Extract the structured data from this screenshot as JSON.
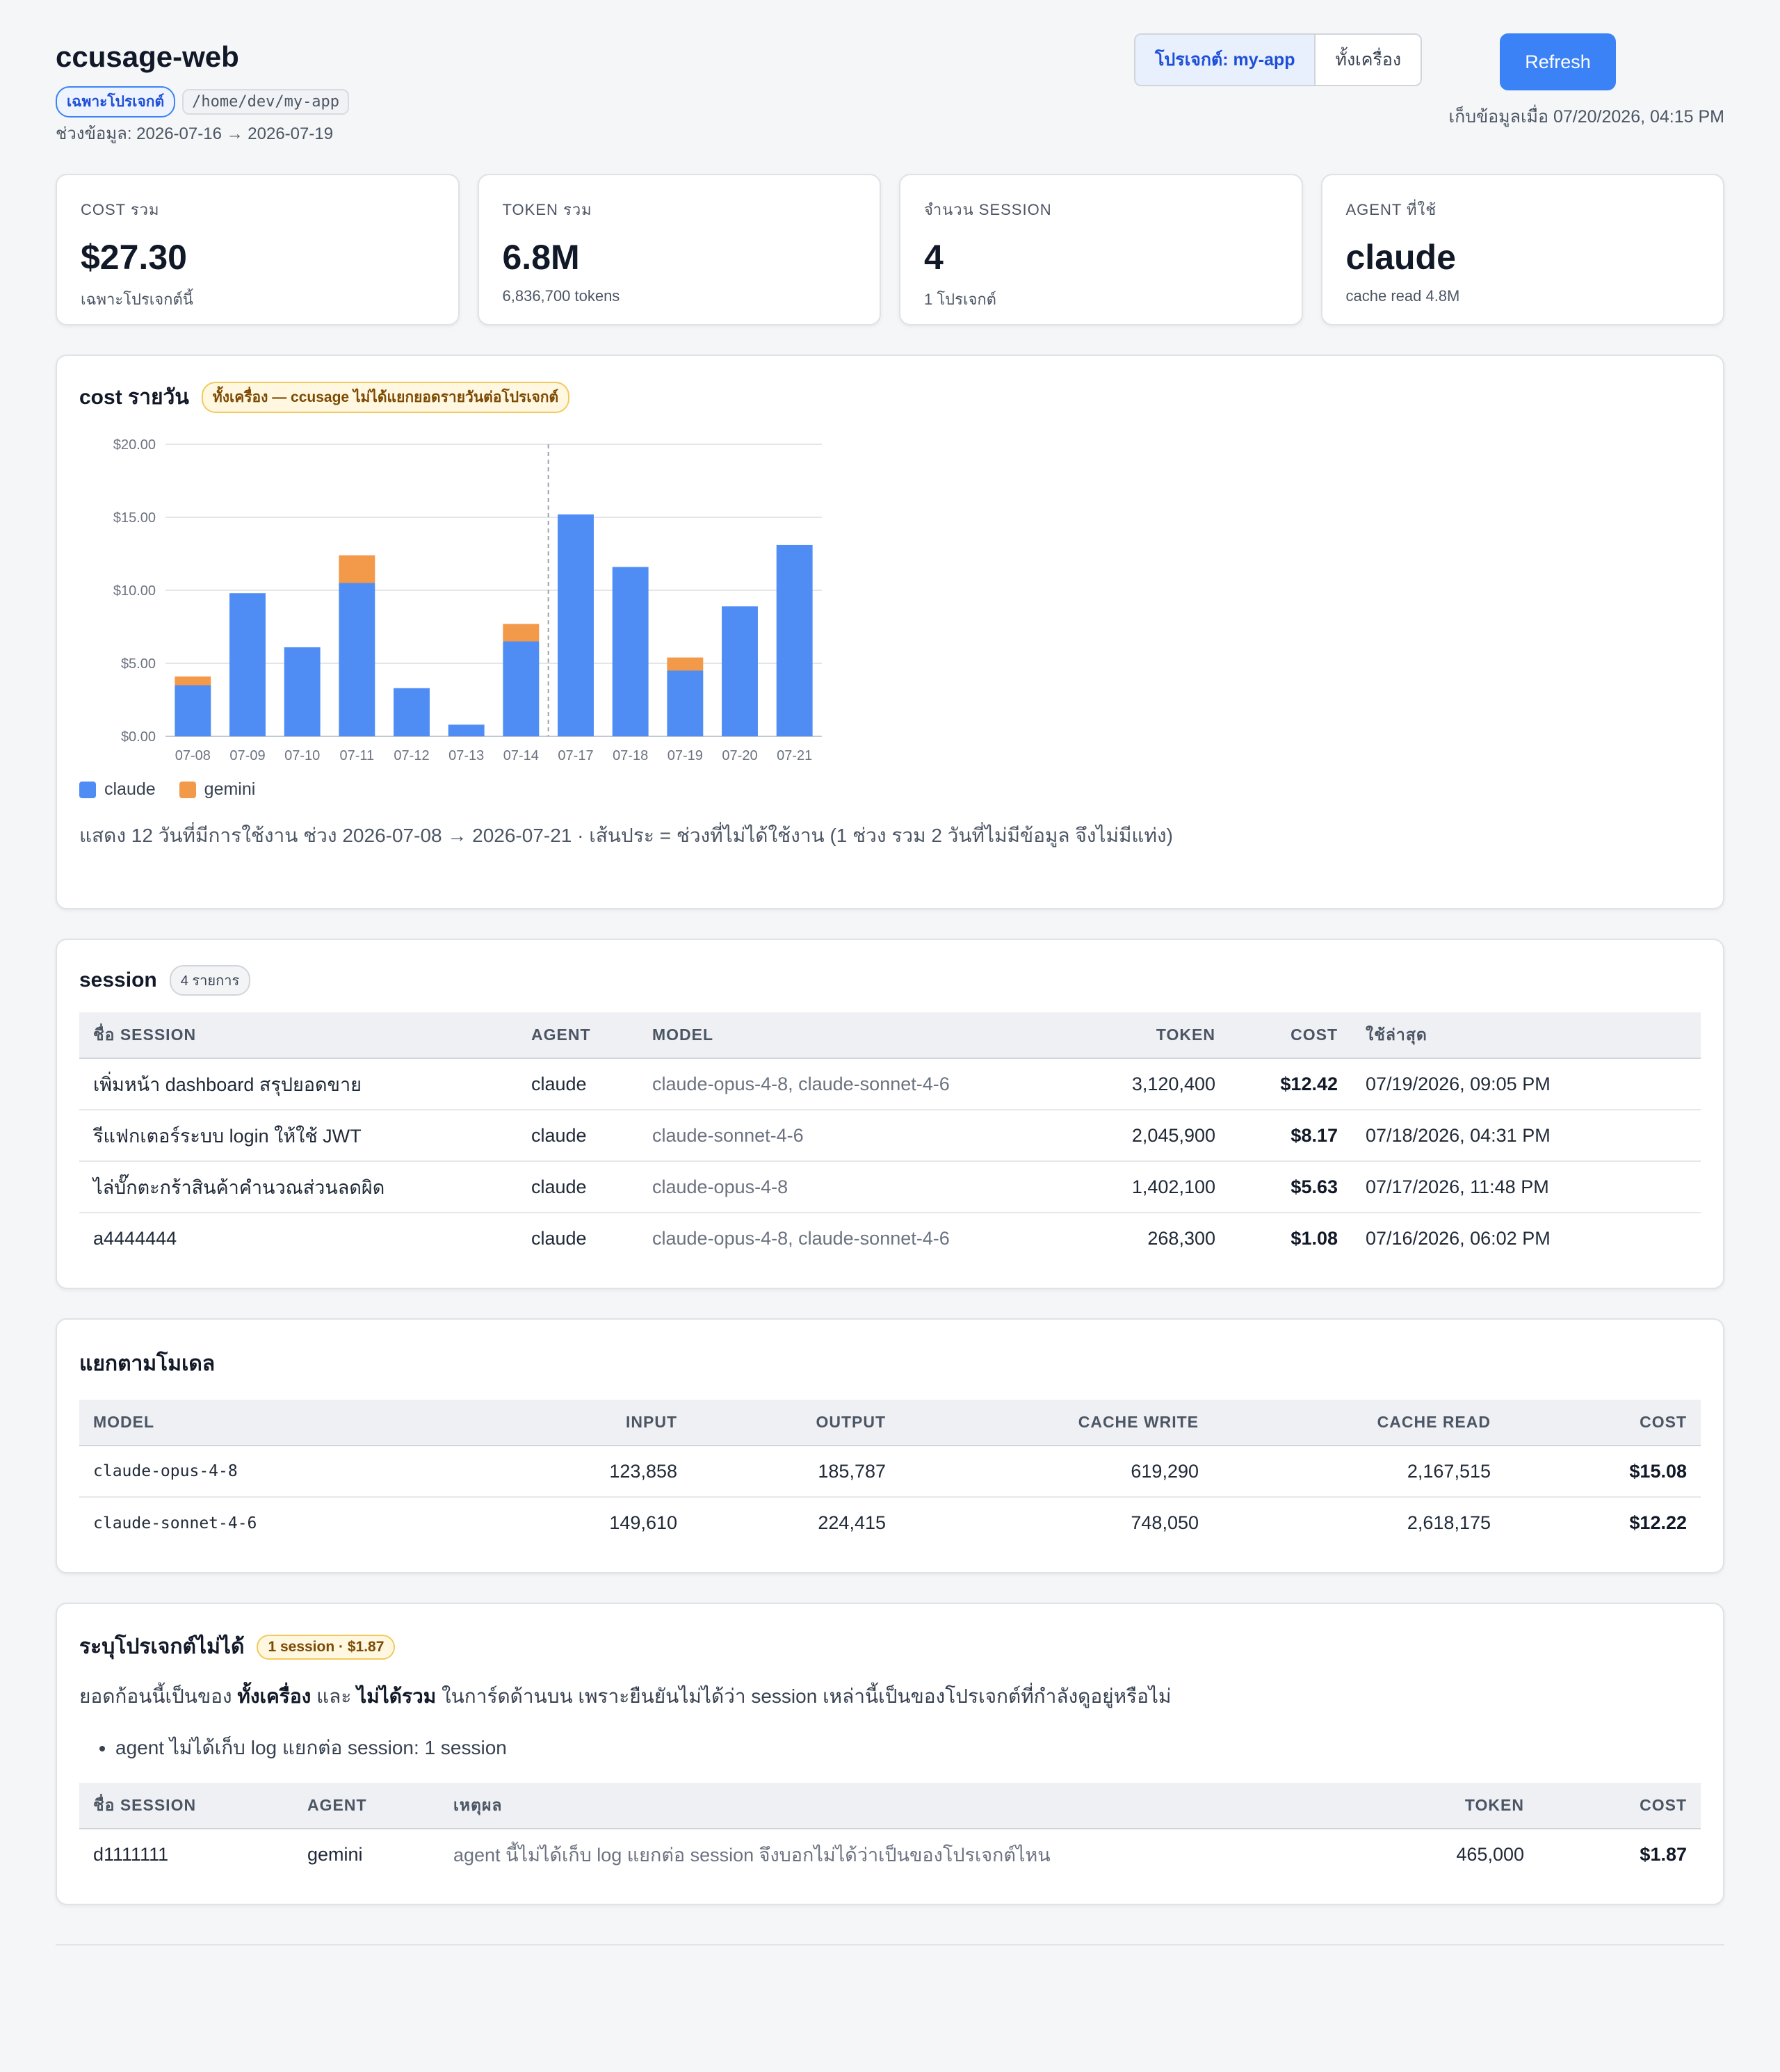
{
  "header": {
    "title": "ccusage-web",
    "scope_badge": "เฉพาะโปรเจกต์",
    "path": "/home/dev/my-app",
    "range": "ช่วงข้อมูล: 2026-07-16 → 2026-07-19",
    "seg_project": "โปรเจกต์: my-app",
    "seg_machine": "ทั้งเครื่อง",
    "refresh": "Refresh",
    "collected": "เก็บข้อมูลเมื่อ 07/20/2026, 04:15 PM"
  },
  "stats": [
    {
      "label": "COST รวม",
      "value": "$27.30",
      "sub": "เฉพาะโปรเจกต์นี้"
    },
    {
      "label": "TOKEN รวม",
      "value": "6.8M",
      "sub": "6,836,700 tokens"
    },
    {
      "label": "จำนวน SESSION",
      "value": "4",
      "sub": "1 โปรเจกต์"
    },
    {
      "label": "AGENT ที่ใช้",
      "value": "claude",
      "sub": "cache read 4.8M"
    }
  ],
  "daily": {
    "title": "cost รายวัน",
    "badge": "ทั้งเครื่อง — ccusage ไม่ได้แยกยอดรายวันต่อโปรเจกต์",
    "note": "แสดง 12 วันที่มีการใช้งาน ช่วง 2026-07-08 → 2026-07-21 · เส้นประ = ช่วงที่ไม่ได้ใช้งาน (1 ช่วง รวม 2 วันที่ไม่มีข้อมูล จึงไม่มีแท่ง)"
  },
  "chart_data": {
    "type": "bar",
    "stacked": true,
    "categories": [
      "07-08",
      "07-09",
      "07-10",
      "07-11",
      "07-12",
      "07-13",
      "07-14",
      "07-17",
      "07-18",
      "07-19",
      "07-20",
      "07-21"
    ],
    "series": [
      {
        "name": "claude",
        "color": "#4f8df5",
        "values": [
          3.5,
          9.8,
          6.1,
          10.5,
          3.3,
          0.8,
          6.5,
          15.2,
          11.6,
          4.5,
          8.9,
          13.1
        ]
      },
      {
        "name": "gemini",
        "color": "#f2994a",
        "values": [
          0.6,
          0,
          0,
          1.9,
          0,
          0,
          1.2,
          0,
          0,
          0.9,
          0,
          0
        ]
      }
    ],
    "yticks": [
      "$0.00",
      "$5.00",
      "$10.00",
      "$15.00",
      "$20.00"
    ],
    "ylim": [
      0,
      20
    ],
    "gap_after": "07-14",
    "grid": true,
    "legend": "bottom-left"
  },
  "sessions": {
    "title": "session",
    "count": "4 รายการ",
    "headers": [
      "ชื่อ SESSION",
      "AGENT",
      "MODEL",
      "TOKEN",
      "COST",
      "ใช้ล่าสุด"
    ],
    "rows": [
      [
        "เพิ่มหน้า dashboard สรุปยอดขาย",
        "claude",
        "claude-opus-4-8, claude-sonnet-4-6",
        "3,120,400",
        "$12.42",
        "07/19/2026, 09:05 PM"
      ],
      [
        "รีแฟกเตอร์ระบบ login ให้ใช้ JWT",
        "claude",
        "claude-sonnet-4-6",
        "2,045,900",
        "$8.17",
        "07/18/2026, 04:31 PM"
      ],
      [
        "ไล่บั๊กตะกร้าสินค้าคำนวณส่วนลดผิด",
        "claude",
        "claude-opus-4-8",
        "1,402,100",
        "$5.63",
        "07/17/2026, 11:48 PM"
      ],
      [
        "a4444444",
        "claude",
        "claude-opus-4-8, claude-sonnet-4-6",
        "268,300",
        "$1.08",
        "07/16/2026, 06:02 PM"
      ]
    ]
  },
  "models": {
    "title": "แยกตามโมเดล",
    "headers": [
      "MODEL",
      "INPUT",
      "OUTPUT",
      "CACHE WRITE",
      "CACHE READ",
      "COST"
    ],
    "rows": [
      [
        "claude-opus-4-8",
        "123,858",
        "185,787",
        "619,290",
        "2,167,515",
        "$15.08"
      ],
      [
        "claude-sonnet-4-6",
        "149,610",
        "224,415",
        "748,050",
        "2,618,175",
        "$12.22"
      ]
    ]
  },
  "unassigned": {
    "title": "ระบุโปรเจกต์ไม่ได้",
    "badge": "1 session · $1.87",
    "text_a": "ยอดก้อนนี้เป็นของ ",
    "text_b": "ทั้งเครื่อง",
    "text_c": " และ ",
    "text_d": "ไม่ได้รวม",
    "text_e": " ในการ์ดด้านบน เพราะยืนยันไม่ได้ว่า session เหล่านี้เป็นของโปรเจกต์ที่กำลังดูอยู่หรือไม่",
    "bullet": "agent ไม่ได้เก็บ log แยกต่อ session: 1 session",
    "headers": [
      "ชื่อ SESSION",
      "AGENT",
      "เหตุผล",
      "TOKEN",
      "COST"
    ],
    "rows": [
      [
        "d1111111",
        "gemini",
        "agent นี้ไม่ได้เก็บ log แยกต่อ session จึงบอกไม่ได้ว่าเป็นของโปรเจกต์ไหน",
        "465,000",
        "$1.87"
      ]
    ]
  }
}
